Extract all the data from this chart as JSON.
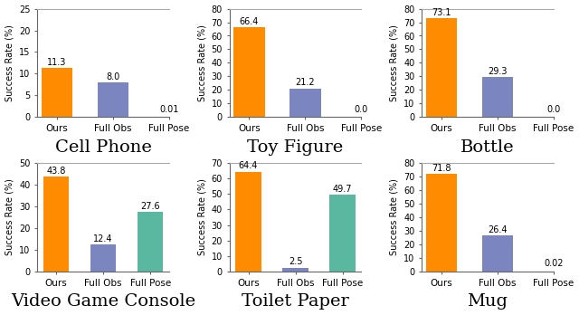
{
  "subplots": [
    {
      "title": "Cell Phone",
      "categories": [
        "Ours",
        "Full Obs",
        "Full Pose"
      ],
      "values": [
        11.3,
        8.0,
        0.01
      ],
      "ylim": [
        0,
        25
      ],
      "yticks": [
        0,
        5,
        10,
        15,
        20,
        25
      ],
      "bar_colors": [
        "#FF8C00",
        "#7B86C0",
        "#7B86C0"
      ],
      "show_bar": [
        true,
        true,
        false
      ]
    },
    {
      "title": "Toy Figure",
      "categories": [
        "Ours",
        "Full Obs",
        "Full Pose"
      ],
      "values": [
        66.4,
        21.2,
        0.0
      ],
      "ylim": [
        0,
        80
      ],
      "yticks": [
        0,
        10,
        20,
        30,
        40,
        50,
        60,
        70,
        80
      ],
      "bar_colors": [
        "#FF8C00",
        "#7B86C0",
        "#7B86C0"
      ],
      "show_bar": [
        true,
        true,
        false
      ]
    },
    {
      "title": "Bottle",
      "categories": [
        "Ours",
        "Full Obs",
        "Full Pose"
      ],
      "values": [
        73.1,
        29.3,
        0.0
      ],
      "ylim": [
        0,
        80
      ],
      "yticks": [
        0,
        10,
        20,
        30,
        40,
        50,
        60,
        70,
        80
      ],
      "bar_colors": [
        "#FF8C00",
        "#7B86C0",
        "#7B86C0"
      ],
      "show_bar": [
        true,
        true,
        false
      ]
    },
    {
      "title": "Video Game Console",
      "categories": [
        "Ours",
        "Full Obs",
        "Full Pose"
      ],
      "values": [
        43.8,
        12.4,
        27.6
      ],
      "ylim": [
        0,
        50
      ],
      "yticks": [
        0,
        10,
        20,
        30,
        40,
        50
      ],
      "bar_colors": [
        "#FF8C00",
        "#7B86C0",
        "#5BB8A0"
      ],
      "show_bar": [
        true,
        true,
        true
      ]
    },
    {
      "title": "Toilet Paper",
      "categories": [
        "Ours",
        "Full Obs",
        "Full Pose"
      ],
      "values": [
        64.4,
        2.5,
        49.7
      ],
      "ylim": [
        0,
        70
      ],
      "yticks": [
        0,
        10,
        20,
        30,
        40,
        50,
        60,
        70
      ],
      "bar_colors": [
        "#FF8C00",
        "#7B86C0",
        "#5BB8A0"
      ],
      "show_bar": [
        true,
        true,
        true
      ]
    },
    {
      "title": "Mug",
      "categories": [
        "Ours",
        "Full Obs",
        "Full Pose"
      ],
      "values": [
        71.8,
        26.4,
        0.02
      ],
      "ylim": [
        0,
        80
      ],
      "yticks": [
        0,
        10,
        20,
        30,
        40,
        50,
        60,
        70,
        80
      ],
      "bar_colors": [
        "#FF8C00",
        "#7B86C0",
        "#7B86C0"
      ],
      "show_bar": [
        true,
        true,
        false
      ]
    }
  ],
  "ylabel": "Success Rate (%)",
  "background_color": "#FFFFFF",
  "title_fontsize": 14,
  "label_fontsize": 7.5,
  "value_fontsize": 7,
  "axis_fontsize": 7
}
